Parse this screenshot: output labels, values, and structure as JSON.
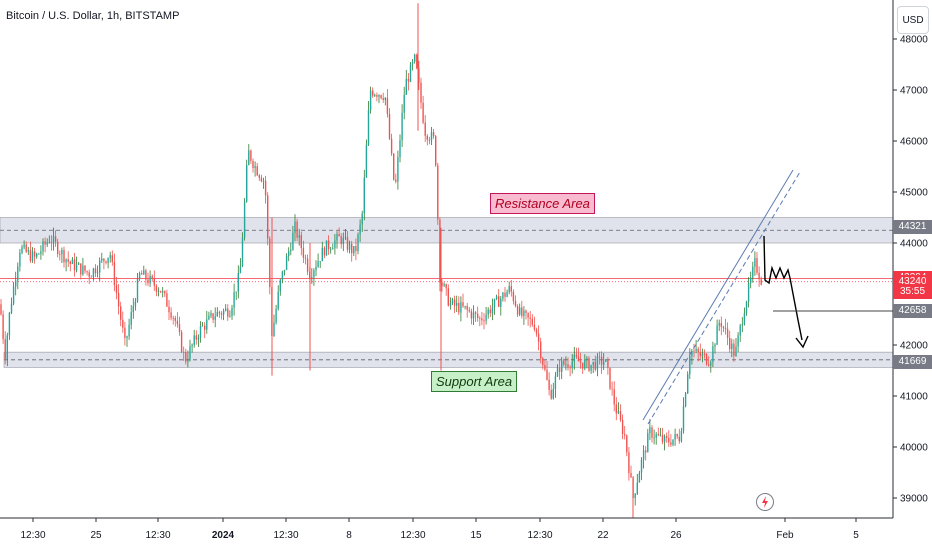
{
  "title": "Bitcoin / U.S. Dollar, 1h, BITSTAMP",
  "currency_button": "USD",
  "annotations": {
    "resistance": "Resistance Area",
    "support": "Support Area"
  },
  "price_tags": [
    {
      "label": "44321",
      "value": 44321,
      "bg": "#787b86",
      "fg": "#ffffff"
    },
    {
      "label": "43304",
      "value": 43304,
      "bg": "#f23645",
      "fg": "#ffffff"
    },
    {
      "label": "43240",
      "value": 43240,
      "bg": "#f23645",
      "fg": "#ffffff"
    },
    {
      "label": "35:55",
      "value": 43040,
      "bg": "#f23645",
      "fg": "#ffffff"
    },
    {
      "label": "42658",
      "value": 42658,
      "bg": "#787b86",
      "fg": "#ffffff"
    },
    {
      "label": "41669",
      "value": 41669,
      "bg": "#787b86",
      "fg": "#ffffff"
    }
  ],
  "colors": {
    "up": "#26a69a",
    "up_wick": "#2e7d32",
    "down": "#ef5350",
    "zone": "#e0e3eb",
    "price_line": "#f23645",
    "trend": "#1e88e5"
  },
  "chart_data": {
    "type": "candlestick",
    "title": "Bitcoin / U.S. Dollar, 1h, BITSTAMP",
    "y_ticks": [
      39000,
      40000,
      41000,
      42000,
      43000,
      44000,
      45000,
      46000,
      47000,
      48000
    ],
    "x_ticks": [
      "12:30",
      "25",
      "12:30",
      "2024",
      "12:30",
      "8",
      "12:30",
      "15",
      "12:30",
      "22",
      "26",
      "Feb",
      "5"
    ],
    "ylim": [
      38500,
      48700
    ],
    "resistance_zone": [
      44000,
      44500
    ],
    "support_zone": [
      41560,
      41860
    ],
    "current_price": 43240,
    "series_points": [
      [
        0,
        42800
      ],
      [
        5,
        41800
      ],
      [
        10,
        42700
      ],
      [
        20,
        43900
      ],
      [
        35,
        43700
      ],
      [
        50,
        44100
      ],
      [
        70,
        43600
      ],
      [
        90,
        43400
      ],
      [
        110,
        43800
      ],
      [
        125,
        42000
      ],
      [
        140,
        43400
      ],
      [
        160,
        43100
      ],
      [
        175,
        42500
      ],
      [
        185,
        41700
      ],
      [
        200,
        42300
      ],
      [
        215,
        42600
      ],
      [
        230,
        42700
      ],
      [
        240,
        43400
      ],
      [
        248,
        45800
      ],
      [
        255,
        45500
      ],
      [
        265,
        45200
      ],
      [
        272,
        42200
      ],
      [
        280,
        43200
      ],
      [
        295,
        44300
      ],
      [
        310,
        43400
      ],
      [
        325,
        43900
      ],
      [
        340,
        44100
      ],
      [
        355,
        43800
      ],
      [
        362,
        44500
      ],
      [
        370,
        47000
      ],
      [
        385,
        46900
      ],
      [
        395,
        45000
      ],
      [
        405,
        47100
      ],
      [
        415,
        47600
      ],
      [
        425,
        46200
      ],
      [
        435,
        46000
      ],
      [
        440,
        43300
      ],
      [
        450,
        42800
      ],
      [
        465,
        42700
      ],
      [
        480,
        42500
      ],
      [
        495,
        42800
      ],
      [
        510,
        43100
      ],
      [
        520,
        42600
      ],
      [
        535,
        42400
      ],
      [
        550,
        41000
      ],
      [
        560,
        41600
      ],
      [
        575,
        41700
      ],
      [
        590,
        41600
      ],
      [
        605,
        41700
      ],
      [
        615,
        40800
      ],
      [
        625,
        40200
      ],
      [
        633,
        39000
      ],
      [
        640,
        39600
      ],
      [
        650,
        40300
      ],
      [
        665,
        40100
      ],
      [
        680,
        40200
      ],
      [
        690,
        41900
      ],
      [
        700,
        41800
      ],
      [
        710,
        41700
      ],
      [
        720,
        42500
      ],
      [
        735,
        41800
      ],
      [
        745,
        42800
      ],
      [
        755,
        43600
      ],
      [
        762,
        43240
      ]
    ]
  }
}
